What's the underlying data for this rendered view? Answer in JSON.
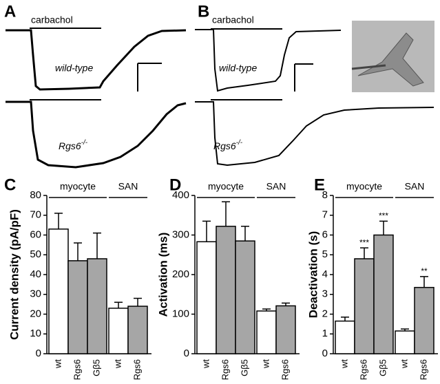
{
  "traces": [
    {
      "panel": "A",
      "stimulus": "carbachol",
      "top_label": "wild-type",
      "bottom_label": "Rgs6",
      "bottom_label_sup": "-/-"
    },
    {
      "panel": "B",
      "stimulus": "carbachol",
      "top_label": "wild-type",
      "bottom_label": "Rgs6",
      "bottom_label_sup": "-/-"
    }
  ],
  "chart_data": [
    {
      "type": "bar",
      "panel": "C",
      "ylabel": "Current density (pA/pF)",
      "ylim": [
        0,
        80
      ],
      "yticks": [
        0,
        10,
        20,
        30,
        40,
        50,
        60,
        70,
        80
      ],
      "categories": [
        "wt",
        "Rgs6",
        "Gβ5",
        "wt",
        "Rgs6"
      ],
      "category_groups": [
        "myocyte",
        "myocyte",
        "myocyte",
        "SAN",
        "SAN"
      ],
      "colors": [
        "#ffffff",
        "#a6a6a6",
        "#a6a6a6",
        "#ffffff",
        "#a6a6a6"
      ],
      "values": [
        63,
        47,
        48,
        23,
        24
      ],
      "errors": [
        8,
        9,
        13,
        3,
        4
      ]
    },
    {
      "type": "bar",
      "panel": "D",
      "ylabel": "Activation (ms)",
      "ylim": [
        0,
        400
      ],
      "yticks": [
        0,
        100,
        200,
        300,
        400
      ],
      "categories": [
        "wt",
        "Rgs6",
        "Gβ5",
        "wt",
        "Rgs6"
      ],
      "category_groups": [
        "myocyte",
        "myocyte",
        "myocyte",
        "SAN",
        "SAN"
      ],
      "colors": [
        "#ffffff",
        "#a6a6a6",
        "#a6a6a6",
        "#ffffff",
        "#a6a6a6"
      ],
      "values": [
        283,
        322,
        285,
        108,
        121
      ],
      "errors": [
        52,
        62,
        37,
        5,
        7
      ]
    },
    {
      "type": "bar",
      "panel": "E",
      "ylabel": "Deactivation (s)",
      "ylim": [
        0,
        8
      ],
      "yticks": [
        0,
        1,
        2,
        3,
        4,
        5,
        6,
        7,
        8
      ],
      "categories": [
        "wt",
        "Rgs6",
        "Gβ5",
        "wt",
        "Rgs6"
      ],
      "category_groups": [
        "myocyte",
        "myocyte",
        "myocyte",
        "SAN",
        "SAN"
      ],
      "colors": [
        "#ffffff",
        "#a6a6a6",
        "#a6a6a6",
        "#ffffff",
        "#a6a6a6"
      ],
      "values": [
        1.65,
        4.8,
        6.0,
        1.15,
        3.35
      ],
      "errors": [
        0.2,
        0.55,
        0.7,
        0.1,
        0.55
      ],
      "annotations": [
        null,
        "***",
        "***",
        null,
        "**"
      ]
    }
  ]
}
